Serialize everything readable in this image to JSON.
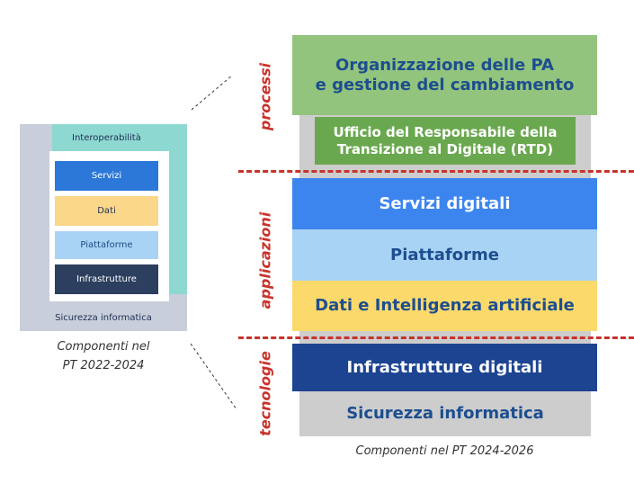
{
  "left": {
    "interoperability": "Interoperabilità",
    "layers": [
      "Servizi",
      "Dati",
      "Piattaforme",
      "Infrastrutture"
    ],
    "security": "Sicurezza informatica",
    "caption_line1": "Componenti nel",
    "caption_line2": "PT 2022-2024"
  },
  "right": {
    "group_labels": {
      "processes": "processi",
      "applications": "applicazioni",
      "technologies": "tecnologie"
    },
    "org_line1": "Organizzazione delle PA",
    "org_line2": "e gestione del cambiamento",
    "rtd_line1": "Ufficio del Responsabile della",
    "rtd_line2": "Transizione al Digitale (RTD)",
    "services": "Servizi digitali",
    "platforms": "Piattaforme",
    "data_ai": "Dati e Intelligenza artificiale",
    "infrastructure": "Infrastrutture digitali",
    "security": "Sicurezza informatica",
    "caption": "Componenti nel PT 2024-2026"
  },
  "colors": {
    "accent_red": "#c8332b",
    "dark_blue_text": "#1d4e8f",
    "green_light": "#93c47d",
    "green_dark": "#6aa84f",
    "blue": "#3d85ee",
    "light_blue": "#a9d3f5",
    "yellow": "#fcd96b",
    "navy": "#1d4491",
    "gray": "#cdcdcd",
    "teal": "#8ed8d2"
  }
}
